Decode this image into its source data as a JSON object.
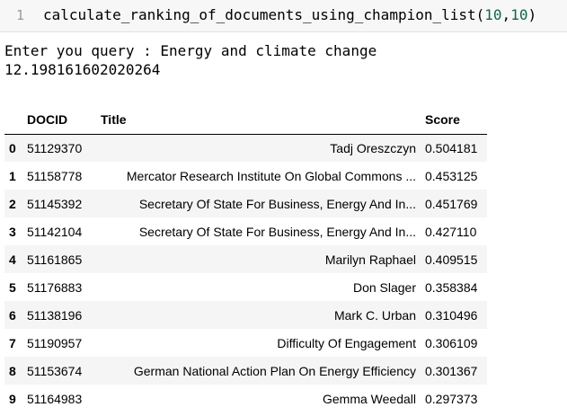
{
  "code_cell": {
    "line_number": "1",
    "func_name": "calculate_ranking_of_documents_using_champion_list",
    "arg1": "10",
    "arg2": "10"
  },
  "output": {
    "query_line": "Enter you query : Energy and climate change",
    "time_value": "12.198161602020264"
  },
  "table": {
    "headers": {
      "index": "",
      "docid": "DOCID",
      "title": "Title",
      "score": "Score"
    },
    "rows": [
      {
        "index": "0",
        "docid": "51129370",
        "title": "Tadj Oreszczyn",
        "score": "0.504181"
      },
      {
        "index": "1",
        "docid": "51158778",
        "title": "Mercator Research Institute On Global Commons ...",
        "score": "0.453125"
      },
      {
        "index": "2",
        "docid": "51145392",
        "title": "Secretary Of State For Business, Energy And In...",
        "score": "0.451769"
      },
      {
        "index": "3",
        "docid": "51142104",
        "title": "Secretary Of State For Business, Energy And In...",
        "score": "0.427110"
      },
      {
        "index": "4",
        "docid": "51161865",
        "title": "Marilyn Raphael",
        "score": "0.409515"
      },
      {
        "index": "5",
        "docid": "51176883",
        "title": "Don Slager",
        "score": "0.358384"
      },
      {
        "index": "6",
        "docid": "51138196",
        "title": "Mark C. Urban",
        "score": "0.310496"
      },
      {
        "index": "7",
        "docid": "51190957",
        "title": "Difficulty Of Engagement",
        "score": "0.306109"
      },
      {
        "index": "8",
        "docid": "51153674",
        "title": "German National Action Plan On Energy Efficiency",
        "score": "0.301367"
      },
      {
        "index": "9",
        "docid": "51164983",
        "title": "Gemma Weedall",
        "score": "0.297373"
      }
    ]
  }
}
